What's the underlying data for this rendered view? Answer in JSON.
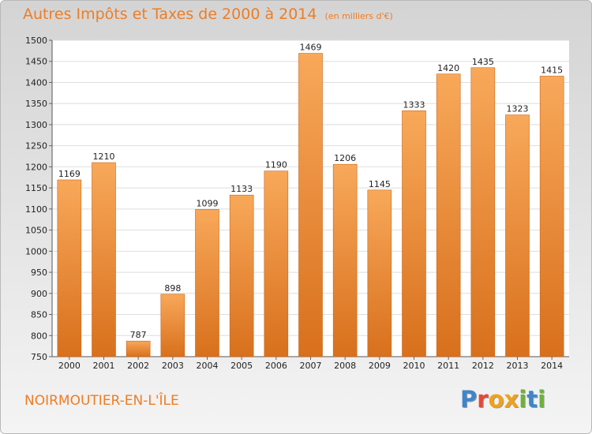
{
  "header": {
    "title": "Autres Impôts et Taxes de 2000 à 2014",
    "unit": "(en milliers d'€)"
  },
  "footer": {
    "place": "NOIRMOUTIER-EN-L'ÎLE",
    "logo_letters": [
      "P",
      "r",
      "o",
      "x",
      "i",
      "t",
      "i"
    ]
  },
  "colors": {
    "bar_top": "#f8a85a",
    "bar_bottom": "#d8701c",
    "title": "#ee7d24",
    "logo": [
      "#3f86c8",
      "#e34a36",
      "#f0a21a",
      "#f0a21a",
      "#6fb13b",
      "#3f86c8",
      "#6fb13b"
    ]
  },
  "chart_data": {
    "type": "bar",
    "title": "Autres Impôts et Taxes de 2000 à 2014",
    "xlabel": "",
    "ylabel": "",
    "categories": [
      "2000",
      "2001",
      "2002",
      "2003",
      "2004",
      "2005",
      "2006",
      "2007",
      "2008",
      "2009",
      "2010",
      "2011",
      "2012",
      "2013",
      "2014"
    ],
    "values": [
      1169,
      1210,
      787,
      898,
      1099,
      1133,
      1190,
      1469,
      1206,
      1145,
      1333,
      1420,
      1435,
      1323,
      1415
    ],
    "ylim": [
      750,
      1500
    ],
    "yticks": [
      750,
      800,
      850,
      900,
      950,
      1000,
      1050,
      1100,
      1150,
      1200,
      1250,
      1300,
      1350,
      1400,
      1450,
      1500
    ],
    "grid": true,
    "legend": "none"
  }
}
